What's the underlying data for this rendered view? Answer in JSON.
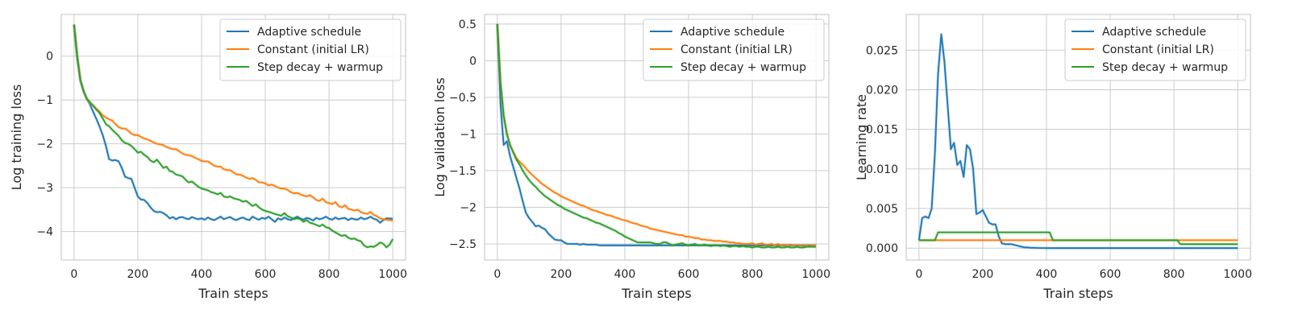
{
  "colors": {
    "adaptive": "#1f77b4",
    "constant": "#ff7f0e",
    "step": "#2ca02c"
  },
  "chart_data": [
    {
      "type": "line",
      "xlabel": "Train steps",
      "ylabel": "Log training loss",
      "xlim": [
        -40,
        1040
      ],
      "ylim": [
        -4.65,
        0.95
      ],
      "xticks": [
        0,
        200,
        400,
        600,
        800,
        1000
      ],
      "yticks": [
        0,
        -1,
        -2,
        -3,
        -4
      ],
      "grid": true,
      "legend": "top-right",
      "x": [
        0,
        10,
        20,
        30,
        40,
        50,
        60,
        70,
        80,
        90,
        100,
        110,
        120,
        130,
        140,
        150,
        160,
        170,
        180,
        190,
        200,
        210,
        220,
        230,
        240,
        250,
        260,
        270,
        280,
        290,
        300,
        310,
        320,
        330,
        340,
        350,
        360,
        370,
        380,
        390,
        400,
        410,
        420,
        430,
        440,
        450,
        460,
        470,
        480,
        490,
        500,
        510,
        520,
        530,
        540,
        550,
        560,
        570,
        580,
        590,
        600,
        610,
        620,
        630,
        640,
        650,
        660,
        670,
        680,
        690,
        700,
        710,
        720,
        730,
        740,
        750,
        760,
        770,
        780,
        790,
        800,
        810,
        820,
        830,
        840,
        850,
        860,
        870,
        880,
        890,
        900,
        910,
        920,
        930,
        940,
        950,
        960,
        970,
        980,
        990,
        1000
      ],
      "series": [
        {
          "name": "Adaptive schedule",
          "color_key": "adaptive",
          "values": [
            0.72,
            -0.05,
            -0.55,
            -0.8,
            -0.97,
            -1.1,
            -1.27,
            -1.43,
            -1.6,
            -1.8,
            -2.05,
            -2.35,
            -2.38,
            -2.37,
            -2.4,
            -2.55,
            -2.75,
            -2.78,
            -2.8,
            -3.0,
            -3.2,
            -3.27,
            -3.28,
            -3.35,
            -3.45,
            -3.53,
            -3.56,
            -3.55,
            -3.58,
            -3.63,
            -3.7,
            -3.67,
            -3.72,
            -3.68,
            -3.67,
            -3.7,
            -3.72,
            -3.67,
            -3.7,
            -3.72,
            -3.7,
            -3.73,
            -3.68,
            -3.72,
            -3.74,
            -3.7,
            -3.66,
            -3.72,
            -3.69,
            -3.67,
            -3.72,
            -3.74,
            -3.7,
            -3.68,
            -3.72,
            -3.74,
            -3.66,
            -3.7,
            -3.73,
            -3.69,
            -3.71,
            -3.66,
            -3.72,
            -3.78,
            -3.7,
            -3.73,
            -3.68,
            -3.72,
            -3.74,
            -3.7,
            -3.66,
            -3.7,
            -3.73,
            -3.69,
            -3.71,
            -3.75,
            -3.69,
            -3.72,
            -3.7,
            -3.66,
            -3.71,
            -3.73,
            -3.68,
            -3.72,
            -3.7,
            -3.69,
            -3.74,
            -3.7,
            -3.72,
            -3.73,
            -3.68,
            -3.72,
            -3.7,
            -3.66,
            -3.71,
            -3.73,
            -3.8,
            -3.74,
            -3.7,
            -3.7,
            -3.71
          ]
        },
        {
          "name": "Constant (initial LR)",
          "color_key": "constant",
          "values": [
            0.72,
            0.0,
            -0.55,
            -0.8,
            -0.98,
            -1.07,
            -1.12,
            -1.2,
            -1.26,
            -1.35,
            -1.4,
            -1.44,
            -1.47,
            -1.55,
            -1.62,
            -1.65,
            -1.65,
            -1.7,
            -1.77,
            -1.8,
            -1.8,
            -1.84,
            -1.88,
            -1.9,
            -1.93,
            -1.97,
            -2.0,
            -2.01,
            -2.03,
            -2.07,
            -2.1,
            -2.12,
            -2.12,
            -2.17,
            -2.22,
            -2.25,
            -2.26,
            -2.28,
            -2.32,
            -2.35,
            -2.39,
            -2.4,
            -2.4,
            -2.45,
            -2.5,
            -2.52,
            -2.52,
            -2.58,
            -2.6,
            -2.6,
            -2.65,
            -2.7,
            -2.7,
            -2.73,
            -2.77,
            -2.8,
            -2.78,
            -2.82,
            -2.88,
            -2.88,
            -2.9,
            -2.95,
            -2.93,
            -2.96,
            -3.0,
            -3.02,
            -3.02,
            -3.05,
            -3.1,
            -3.13,
            -3.12,
            -3.15,
            -3.18,
            -3.2,
            -3.17,
            -3.22,
            -3.28,
            -3.3,
            -3.25,
            -3.33,
            -3.35,
            -3.38,
            -3.33,
            -3.42,
            -3.45,
            -3.4,
            -3.48,
            -3.5,
            -3.52,
            -3.5,
            -3.56,
            -3.58,
            -3.6,
            -3.55,
            -3.62,
            -3.65,
            -3.7,
            -3.72,
            -3.73,
            -3.74,
            -3.75
          ]
        },
        {
          "name": "Step decay + warmup",
          "color_key": "step",
          "values": [
            0.72,
            0.0,
            -0.55,
            -0.8,
            -0.97,
            -1.05,
            -1.13,
            -1.22,
            -1.3,
            -1.42,
            -1.55,
            -1.6,
            -1.68,
            -1.75,
            -1.82,
            -1.92,
            -1.98,
            -2.0,
            -2.05,
            -2.12,
            -2.2,
            -2.18,
            -2.25,
            -2.3,
            -2.38,
            -2.42,
            -2.36,
            -2.45,
            -2.55,
            -2.52,
            -2.62,
            -2.64,
            -2.7,
            -2.72,
            -2.74,
            -2.82,
            -2.88,
            -2.86,
            -2.92,
            -2.98,
            -3.02,
            -3.04,
            -3.06,
            -3.1,
            -3.12,
            -3.15,
            -3.12,
            -3.2,
            -3.22,
            -3.2,
            -3.24,
            -3.26,
            -3.28,
            -3.32,
            -3.3,
            -3.36,
            -3.42,
            -3.38,
            -3.45,
            -3.5,
            -3.53,
            -3.55,
            -3.57,
            -3.6,
            -3.62,
            -3.64,
            -3.58,
            -3.65,
            -3.68,
            -3.72,
            -3.7,
            -3.72,
            -3.78,
            -3.74,
            -3.8,
            -3.82,
            -3.85,
            -3.88,
            -3.84,
            -3.9,
            -3.92,
            -3.98,
            -4.02,
            -4.06,
            -4.1,
            -4.08,
            -4.14,
            -4.17,
            -4.16,
            -4.2,
            -4.22,
            -4.32,
            -4.36,
            -4.34,
            -4.35,
            -4.31,
            -4.25,
            -4.28,
            -4.36,
            -4.3,
            -4.17
          ]
        }
      ]
    },
    {
      "type": "line",
      "xlabel": "Train steps",
      "ylabel": "Log validation loss",
      "xlim": [
        -40,
        1040
      ],
      "ylim": [
        -2.72,
        0.63
      ],
      "xticks": [
        0,
        200,
        400,
        600,
        800,
        1000
      ],
      "yticks": [
        0.5,
        0.0,
        -0.5,
        -1.0,
        -1.5,
        -2.0,
        -2.5
      ],
      "grid": true,
      "legend": "top-right",
      "x": [
        0,
        10,
        20,
        30,
        40,
        50,
        60,
        70,
        80,
        90,
        100,
        110,
        120,
        130,
        140,
        150,
        160,
        170,
        180,
        190,
        200,
        210,
        220,
        230,
        240,
        250,
        260,
        270,
        280,
        290,
        300,
        310,
        320,
        330,
        340,
        350,
        360,
        370,
        380,
        390,
        400,
        410,
        420,
        430,
        440,
        450,
        460,
        470,
        480,
        490,
        500,
        510,
        520,
        530,
        540,
        550,
        560,
        570,
        580,
        590,
        600,
        610,
        620,
        630,
        640,
        650,
        660,
        670,
        680,
        690,
        700,
        710,
        720,
        730,
        740,
        750,
        760,
        770,
        780,
        790,
        800,
        810,
        820,
        830,
        840,
        850,
        860,
        870,
        880,
        890,
        900,
        910,
        920,
        930,
        940,
        950,
        960,
        970,
        980,
        990,
        1000
      ],
      "series": [
        {
          "name": "Adaptive schedule",
          "color_key": "adaptive",
          "values": [
            0.5,
            -0.6,
            -1.15,
            -1.1,
            -1.3,
            -1.45,
            -1.6,
            -1.75,
            -1.92,
            -2.08,
            -2.15,
            -2.2,
            -2.26,
            -2.25,
            -2.28,
            -2.3,
            -2.36,
            -2.4,
            -2.44,
            -2.45,
            -2.45,
            -2.48,
            -2.5,
            -2.5,
            -2.5,
            -2.5,
            -2.51,
            -2.5,
            -2.51,
            -2.51,
            -2.51,
            -2.51,
            -2.52,
            -2.52,
            -2.52,
            -2.52,
            -2.52,
            -2.52,
            -2.52,
            -2.52,
            -2.52,
            -2.52,
            -2.52,
            -2.52,
            -2.52,
            -2.52,
            -2.52,
            -2.52,
            -2.52,
            -2.52,
            -2.52,
            -2.52,
            -2.52,
            -2.52,
            -2.52,
            -2.52,
            -2.52,
            -2.52,
            -2.52,
            -2.52,
            -2.52,
            -2.52,
            -2.52,
            -2.52,
            -2.52,
            -2.52,
            -2.52,
            -2.52,
            -2.52,
            -2.52,
            -2.52,
            -2.52,
            -2.52,
            -2.52,
            -2.52,
            -2.52,
            -2.52,
            -2.52,
            -2.52,
            -2.52,
            -2.52,
            -2.52,
            -2.52,
            -2.52,
            -2.52,
            -2.52,
            -2.52,
            -2.52,
            -2.52,
            -2.52,
            -2.52,
            -2.52,
            -2.52,
            -2.52,
            -2.52,
            -2.52,
            -2.52,
            -2.52,
            -2.52,
            -2.52,
            -2.52
          ]
        },
        {
          "name": "Constant (initial LR)",
          "color_key": "constant",
          "values": [
            0.5,
            -0.3,
            -0.75,
            -1.0,
            -1.15,
            -1.25,
            -1.33,
            -1.38,
            -1.42,
            -1.47,
            -1.52,
            -1.56,
            -1.6,
            -1.64,
            -1.68,
            -1.71,
            -1.74,
            -1.77,
            -1.8,
            -1.82,
            -1.85,
            -1.87,
            -1.89,
            -1.91,
            -1.93,
            -1.95,
            -1.97,
            -1.98,
            -2.0,
            -2.02,
            -2.04,
            -2.05,
            -2.07,
            -2.08,
            -2.1,
            -2.11,
            -2.12,
            -2.14,
            -2.15,
            -2.17,
            -2.18,
            -2.19,
            -2.21,
            -2.22,
            -2.23,
            -2.25,
            -2.26,
            -2.27,
            -2.29,
            -2.3,
            -2.31,
            -2.32,
            -2.33,
            -2.34,
            -2.35,
            -2.36,
            -2.37,
            -2.38,
            -2.38,
            -2.4,
            -2.4,
            -2.41,
            -2.42,
            -2.42,
            -2.44,
            -2.44,
            -2.45,
            -2.45,
            -2.46,
            -2.46,
            -2.46,
            -2.47,
            -2.47,
            -2.48,
            -2.48,
            -2.49,
            -2.49,
            -2.5,
            -2.5,
            -2.5,
            -2.49,
            -2.51,
            -2.5,
            -2.49,
            -2.51,
            -2.51,
            -2.5,
            -2.52,
            -2.5,
            -2.52,
            -2.51,
            -2.52,
            -2.51,
            -2.52,
            -2.53,
            -2.52,
            -2.53,
            -2.52,
            -2.53,
            -2.52,
            -2.52
          ]
        },
        {
          "name": "Step decay + warmup",
          "color_key": "step",
          "values": [
            0.5,
            -0.3,
            -0.75,
            -1.0,
            -1.15,
            -1.25,
            -1.35,
            -1.42,
            -1.5,
            -1.57,
            -1.63,
            -1.68,
            -1.72,
            -1.77,
            -1.81,
            -1.85,
            -1.88,
            -1.91,
            -1.94,
            -1.97,
            -1.99,
            -2.02,
            -2.04,
            -2.06,
            -2.08,
            -2.1,
            -2.12,
            -2.14,
            -2.15,
            -2.17,
            -2.19,
            -2.21,
            -2.22,
            -2.24,
            -2.26,
            -2.28,
            -2.3,
            -2.32,
            -2.35,
            -2.37,
            -2.4,
            -2.42,
            -2.44,
            -2.46,
            -2.48,
            -2.48,
            -2.48,
            -2.48,
            -2.48,
            -2.49,
            -2.5,
            -2.5,
            -2.48,
            -2.48,
            -2.5,
            -2.52,
            -2.51,
            -2.5,
            -2.49,
            -2.51,
            -2.52,
            -2.51,
            -2.5,
            -2.52,
            -2.52,
            -2.51,
            -2.52,
            -2.53,
            -2.52,
            -2.52,
            -2.53,
            -2.52,
            -2.53,
            -2.54,
            -2.53,
            -2.53,
            -2.54,
            -2.53,
            -2.54,
            -2.54,
            -2.55,
            -2.54,
            -2.54,
            -2.55,
            -2.55,
            -2.54,
            -2.55,
            -2.55,
            -2.54,
            -2.55,
            -2.55,
            -2.54,
            -2.55,
            -2.55,
            -2.54,
            -2.55,
            -2.55,
            -2.54,
            -2.54,
            -2.54,
            -2.54
          ]
        }
      ]
    },
    {
      "type": "line",
      "xlabel": "Train steps",
      "ylabel": "Learning rate",
      "xlim": [
        -40,
        1040
      ],
      "ylim": [
        -0.0015,
        0.0295
      ],
      "xticks": [
        0,
        200,
        400,
        600,
        800,
        1000
      ],
      "yticks": [
        0.0,
        0.005,
        0.01,
        0.015,
        0.02,
        0.025
      ],
      "ytick_labels": [
        "0.000",
        "0.005",
        "0.010",
        "0.015",
        "0.020",
        "0.025"
      ],
      "grid": true,
      "legend": "top-right",
      "series": [
        {
          "name": "Adaptive schedule",
          "color_key": "adaptive",
          "x": [
            0,
            10,
            20,
            30,
            40,
            50,
            60,
            70,
            80,
            90,
            100,
            110,
            120,
            130,
            140,
            150,
            160,
            170,
            180,
            190,
            200,
            210,
            220,
            230,
            240,
            250,
            260,
            270,
            280,
            290,
            300,
            310,
            320,
            330,
            340,
            350,
            360,
            370,
            380,
            390,
            400,
            1000
          ],
          "values": [
            0.001,
            0.0038,
            0.004,
            0.0038,
            0.005,
            0.012,
            0.022,
            0.027,
            0.0235,
            0.018,
            0.0125,
            0.0133,
            0.0105,
            0.011,
            0.009,
            0.013,
            0.0125,
            0.01,
            0.0043,
            0.0045,
            0.0048,
            0.004,
            0.0032,
            0.003,
            0.003,
            0.0015,
            0.0006,
            0.0005,
            0.0005,
            0.0005,
            0.0004,
            0.0003,
            0.0002,
            0.0001,
            0.0001,
            5e-05,
            3e-05,
            2e-05,
            1e-05,
            1e-05,
            0.0,
            0.0
          ]
        },
        {
          "name": "Constant (initial LR)",
          "color_key": "constant",
          "x": [
            0,
            1000
          ],
          "values": [
            0.001,
            0.001
          ]
        },
        {
          "name": "Step decay + warmup",
          "color_key": "step",
          "x": [
            0,
            50,
            60,
            410,
            420,
            810,
            820,
            1000
          ],
          "values": [
            0.001,
            0.001,
            0.002,
            0.002,
            0.001,
            0.001,
            0.0005,
            0.0005
          ]
        }
      ]
    }
  ]
}
